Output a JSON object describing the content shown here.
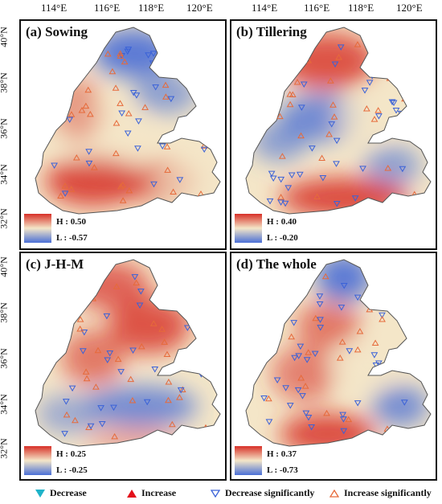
{
  "axes": {
    "lon_ticks": [
      "114°E",
      "116°E",
      "118°E",
      "120°E"
    ],
    "lat_ticks": [
      "40°N",
      "38°N",
      "36°N",
      "34°N",
      "32°N"
    ]
  },
  "panels": [
    {
      "title": "(a) Sowing",
      "high": "H : 0.50",
      "low": "L : -0.57",
      "scheme": "a"
    },
    {
      "title": "(b) Tillering",
      "high": "H : 0.40",
      "low": "L : -0.20",
      "scheme": "b"
    },
    {
      "title": "(c) J-H-M",
      "high": "H : 0.25",
      "low": "L : -0.25",
      "scheme": "c"
    },
    {
      "title": "(d) The whole",
      "high": "H : 0.37",
      "low": "L : -0.73",
      "scheme": "d"
    }
  ],
  "legend": {
    "decrease": "Decrease",
    "increase": "Increase",
    "decrease_sig": "Decrease significantly",
    "increase_sig": "Increase significantly"
  },
  "colors": {
    "high": "#d73027",
    "mid": "#f4e6c8",
    "low": "#4a6fd6",
    "decrease_marker": "#1fb3c9",
    "increase_marker": "#e3101a",
    "decrease_sig_marker": "#3a62d8",
    "increase_sig_marker": "#e66a3a"
  }
}
